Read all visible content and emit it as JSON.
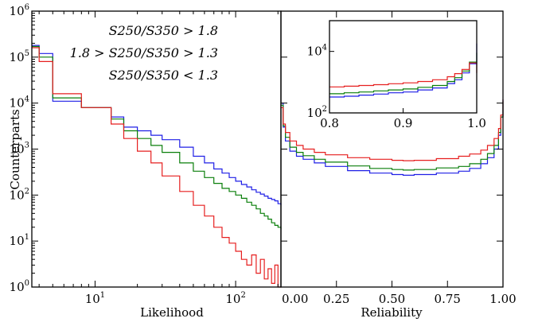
{
  "colors": {
    "blue": "#1f1fe6",
    "green": "#0a7f0a",
    "red": "#e61f1f"
  },
  "chart_data": [
    {
      "type": "line",
      "panel": "likelihood",
      "xscale": "log",
      "yscale": "log",
      "xlabel": "Likelihood",
      "ylabel": "Counterparts",
      "xlim": [
        3.55,
        210
      ],
      "ylim": [
        1,
        1000000
      ],
      "xticks": [
        {
          "value": 10,
          "label": "10^1"
        },
        {
          "value": 100,
          "label": "10^2"
        }
      ],
      "yticks": [
        {
          "value": 1,
          "label": "10^0"
        },
        {
          "value": 10,
          "label": "10^1"
        },
        {
          "value": 100,
          "label": "10^2"
        },
        {
          "value": 1000,
          "label": "10^3"
        },
        {
          "value": 10000,
          "label": "10^4"
        },
        {
          "value": 100000,
          "label": "10^5"
        },
        {
          "value": 1000000,
          "label": "10^6"
        }
      ],
      "legend_position": "top-right",
      "legend": [
        {
          "label": "S250/S350 > 1.8",
          "color_key": "blue"
        },
        {
          "label": "1.8 > S250/S350 > 1.3",
          "color_key": "green"
        },
        {
          "label": "S250/S350 < 1.3",
          "color_key": "red"
        }
      ],
      "series": [
        {
          "color_key": "blue",
          "x": [
            3.55,
            4.0,
            5.0,
            8.0,
            13.0,
            16.0,
            20.0,
            25.0,
            30.0,
            40.0,
            50.0,
            60.0,
            70.0,
            80.0,
            90.0,
            100.0,
            110.0,
            120.0,
            130.0,
            140.0,
            150.0,
            160.0,
            170.0,
            180.0,
            190.0,
            200.0,
            210.0
          ],
          "y": [
            180000,
            120000,
            11000,
            8000,
            5000,
            3000,
            2500,
            2000,
            1600,
            1100,
            700,
            500,
            370,
            300,
            240,
            200,
            170,
            150,
            130,
            115,
            105,
            95,
            85,
            80,
            75,
            65,
            60
          ]
        },
        {
          "color_key": "green",
          "x": [
            3.55,
            4.0,
            5.0,
            8.0,
            13.0,
            16.0,
            20.0,
            25.0,
            30.0,
            40.0,
            50.0,
            60.0,
            70.0,
            80.0,
            90.0,
            100.0,
            110.0,
            120.0,
            130.0,
            140.0,
            150.0,
            160.0,
            170.0,
            180.0,
            190.0,
            200.0,
            210.0
          ],
          "y": [
            170000,
            100000,
            13000,
            8000,
            4500,
            2500,
            1700,
            1200,
            850,
            500,
            330,
            240,
            180,
            140,
            120,
            100,
            85,
            70,
            60,
            50,
            40,
            35,
            30,
            25,
            22,
            20,
            18
          ]
        },
        {
          "color_key": "red",
          "x": [
            3.55,
            4.0,
            5.0,
            8.0,
            13.0,
            16.0,
            20.0,
            25.0,
            30.0,
            40.0,
            50.0,
            60.0,
            70.0,
            80.0,
            90.0,
            100.0,
            110.0,
            120.0,
            130.0,
            140.0,
            150.0,
            160.0,
            170.0,
            180.0,
            190.0,
            200.0,
            210.0
          ],
          "y": [
            160000,
            80000,
            16000,
            8000,
            3500,
            1700,
            900,
            500,
            260,
            120,
            60,
            35,
            20,
            12,
            9,
            6,
            4,
            3,
            5,
            2,
            4,
            1.5,
            2.5,
            1.2,
            3,
            1,
            1
          ]
        }
      ]
    },
    {
      "type": "line",
      "panel": "reliability",
      "yscale": "log",
      "xlabel": "Reliability",
      "xlim": [
        0,
        1
      ],
      "ylim": [
        1,
        1000000
      ],
      "xticks": [
        {
          "value": 0,
          "label": "0.00"
        },
        {
          "value": 0.25,
          "label": "0.25"
        },
        {
          "value": 0.5,
          "label": "0.50"
        },
        {
          "value": 0.75,
          "label": "0.75"
        },
        {
          "value": 1,
          "label": "1.00"
        }
      ],
      "series": [
        {
          "color_key": "blue",
          "x": [
            0,
            0.01,
            0.02,
            0.04,
            0.07,
            0.1,
            0.15,
            0.2,
            0.3,
            0.4,
            0.5,
            0.55,
            0.6,
            0.7,
            0.8,
            0.85,
            0.9,
            0.93,
            0.96,
            0.98,
            0.99,
            1.0
          ],
          "y": [
            10000,
            3000,
            1500,
            900,
            700,
            600,
            500,
            420,
            340,
            300,
            280,
            270,
            280,
            300,
            330,
            380,
            480,
            650,
            1000,
            2000,
            5000,
            12000
          ]
        },
        {
          "color_key": "green",
          "x": [
            0,
            0.01,
            0.02,
            0.04,
            0.07,
            0.1,
            0.15,
            0.2,
            0.3,
            0.4,
            0.5,
            0.55,
            0.6,
            0.7,
            0.8,
            0.85,
            0.9,
            0.93,
            0.96,
            0.98,
            0.99,
            1.0
          ],
          "y": [
            9000,
            3200,
            1800,
            1100,
            850,
            720,
            600,
            520,
            430,
            380,
            360,
            350,
            360,
            390,
            420,
            480,
            600,
            800,
            1200,
            2300,
            5000,
            11000
          ]
        },
        {
          "color_key": "red",
          "x": [
            0,
            0.01,
            0.02,
            0.04,
            0.07,
            0.1,
            0.15,
            0.2,
            0.3,
            0.4,
            0.5,
            0.55,
            0.6,
            0.7,
            0.8,
            0.85,
            0.9,
            0.93,
            0.96,
            0.98,
            0.99,
            1.0
          ],
          "y": [
            8000,
            3500,
            2300,
            1500,
            1200,
            1000,
            850,
            750,
            650,
            600,
            570,
            560,
            570,
            620,
            700,
            780,
            950,
            1200,
            1700,
            2800,
            5500,
            12000
          ]
        }
      ]
    },
    {
      "type": "line",
      "panel": "reliability-inset",
      "yscale": "log",
      "xlim": [
        0.8,
        1.0
      ],
      "ylim": [
        100,
        100000
      ],
      "xticks": [
        {
          "value": 0.8,
          "label": "0.8"
        },
        {
          "value": 0.9,
          "label": "0.9"
        },
        {
          "value": 1.0,
          "label": "1.0"
        }
      ],
      "yticks": [
        {
          "value": 100,
          "label": "10^2"
        },
        {
          "value": 10000,
          "label": "10^4"
        }
      ],
      "series": [
        {
          "color_key": "blue",
          "x": [
            0.8,
            0.82,
            0.84,
            0.86,
            0.88,
            0.9,
            0.92,
            0.94,
            0.96,
            0.97,
            0.98,
            0.99,
            1.0
          ],
          "y": [
            330,
            350,
            380,
            410,
            450,
            480,
            560,
            650,
            900,
            1200,
            2000,
            4000,
            18000
          ]
        },
        {
          "color_key": "green",
          "x": [
            0.8,
            0.82,
            0.84,
            0.86,
            0.88,
            0.9,
            0.92,
            0.94,
            0.96,
            0.97,
            0.98,
            0.99,
            1.0
          ],
          "y": [
            420,
            450,
            480,
            520,
            560,
            600,
            680,
            780,
            1050,
            1400,
            2300,
            4500,
            9000
          ]
        },
        {
          "color_key": "red",
          "x": [
            0.8,
            0.82,
            0.84,
            0.86,
            0.88,
            0.9,
            0.92,
            0.94,
            0.96,
            0.97,
            0.98,
            0.99,
            1.0
          ],
          "y": [
            700,
            740,
            780,
            830,
            890,
            950,
            1050,
            1200,
            1500,
            1900,
            2600,
            4200,
            2000
          ]
        }
      ]
    }
  ]
}
